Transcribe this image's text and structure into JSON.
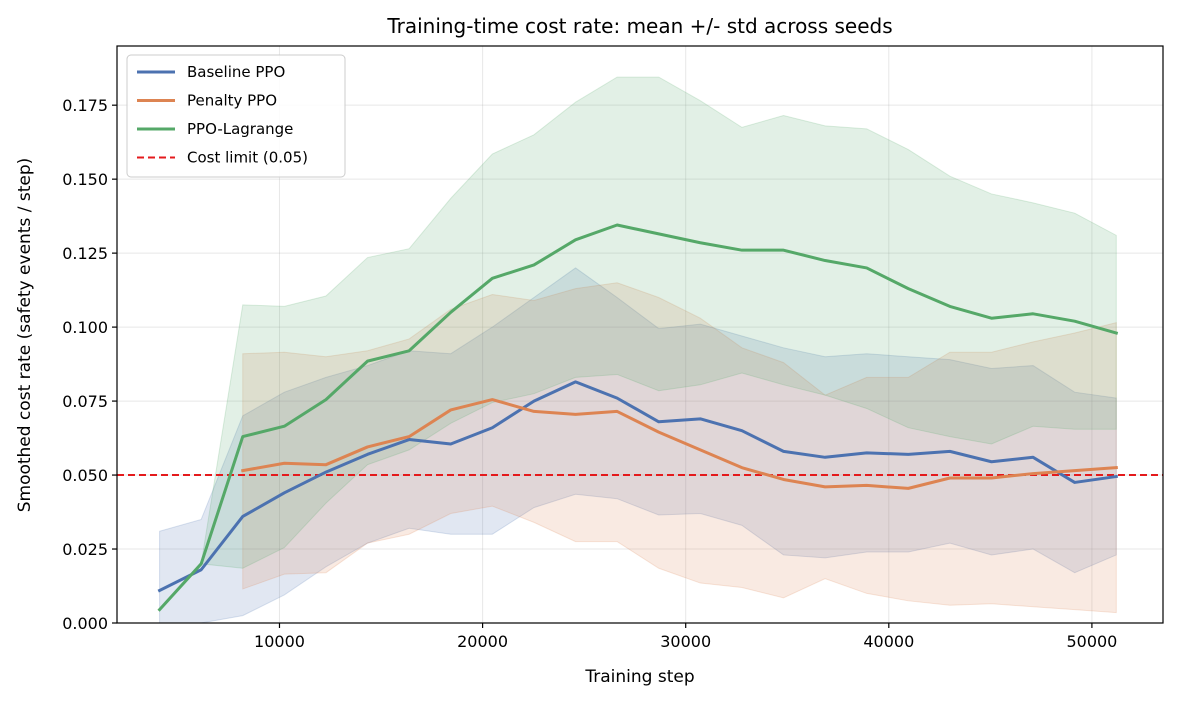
{
  "chart_data": {
    "type": "line",
    "title": "Training-time cost rate: mean +/- std across seeds",
    "xlabel": "Training step",
    "ylabel": "Smoothed cost rate (safety events / step)",
    "xlim": [
      2000,
      53500
    ],
    "ylim": [
      0.0,
      0.195
    ],
    "xticks": [
      10000,
      20000,
      30000,
      40000,
      50000
    ],
    "yticks": [
      0.0,
      0.025,
      0.05,
      0.075,
      0.1,
      0.125,
      0.15,
      0.175
    ],
    "xtick_labels": [
      "10000",
      "20000",
      "30000",
      "40000",
      "50000"
    ],
    "ytick_labels": [
      "0.000",
      "0.025",
      "0.050",
      "0.075",
      "0.100",
      "0.125",
      "0.150",
      "0.175"
    ],
    "grid": true,
    "legend_position": "top-left",
    "series": [
      {
        "name": "Baseline PPO",
        "color": "#4c72b0",
        "x": [
          4096,
          6144,
          8192,
          10240,
          12288,
          14336,
          16384,
          18432,
          20480,
          22528,
          24576,
          26624,
          28672,
          30720,
          32768,
          34816,
          36864,
          38912,
          40960,
          43008,
          45056,
          47104,
          49152,
          51200
        ],
        "mean": [
          0.011,
          0.018,
          0.036,
          0.044,
          0.051,
          0.057,
          0.062,
          0.0605,
          0.066,
          0.075,
          0.0815,
          0.076,
          0.068,
          0.069,
          0.065,
          0.058,
          0.056,
          0.0575,
          0.057,
          0.058,
          0.0545,
          0.056,
          0.0475,
          0.0495
        ],
        "upper": [
          0.031,
          0.035,
          0.07,
          0.078,
          0.083,
          0.087,
          0.092,
          0.091,
          0.1,
          0.11,
          0.12,
          0.11,
          0.0995,
          0.101,
          0.097,
          0.093,
          0.09,
          0.091,
          0.09,
          0.089,
          0.086,
          0.087,
          0.078,
          0.076
        ],
        "lower": [
          0.0,
          0.0,
          0.0025,
          0.0095,
          0.019,
          0.027,
          0.032,
          0.03,
          0.03,
          0.039,
          0.0435,
          0.042,
          0.0365,
          0.037,
          0.033,
          0.023,
          0.022,
          0.024,
          0.024,
          0.027,
          0.023,
          0.025,
          0.017,
          0.023
        ]
      },
      {
        "name": "Penalty PPO",
        "color": "#dd8452",
        "x": [
          8192,
          10240,
          12288,
          14336,
          16384,
          18432,
          20480,
          22528,
          24576,
          26624,
          28672,
          30720,
          32768,
          34816,
          36864,
          38912,
          40960,
          43008,
          45056,
          47104,
          49152,
          51200
        ],
        "mean": [
          0.0515,
          0.054,
          0.0535,
          0.0595,
          0.063,
          0.072,
          0.0755,
          0.0715,
          0.0705,
          0.0715,
          0.0645,
          0.0585,
          0.0525,
          0.0485,
          0.046,
          0.0465,
          0.0455,
          0.049,
          0.049,
          0.0505,
          0.0515,
          0.0525
        ],
        "upper": [
          0.091,
          0.0915,
          0.09,
          0.092,
          0.096,
          0.106,
          0.111,
          0.109,
          0.113,
          0.115,
          0.11,
          0.103,
          0.093,
          0.088,
          0.077,
          0.083,
          0.083,
          0.0915,
          0.0915,
          0.095,
          0.098,
          0.1015
        ],
        "lower": [
          0.0115,
          0.0165,
          0.017,
          0.027,
          0.03,
          0.037,
          0.0395,
          0.034,
          0.0275,
          0.0275,
          0.0185,
          0.0135,
          0.012,
          0.0085,
          0.015,
          0.01,
          0.0075,
          0.006,
          0.0065,
          0.0055,
          0.0045,
          0.0035
        ]
      },
      {
        "name": "PPO-Lagrange",
        "color": "#55a868",
        "x": [
          4096,
          6144,
          8192,
          10240,
          12288,
          14336,
          16384,
          18432,
          20480,
          22528,
          24576,
          26624,
          28672,
          30720,
          32768,
          34816,
          36864,
          38912,
          40960,
          43008,
          45056,
          47104,
          49152,
          51200
        ],
        "mean": [
          0.0045,
          0.02,
          0.063,
          0.0665,
          0.0755,
          0.0885,
          0.092,
          0.105,
          0.1165,
          0.121,
          0.1295,
          0.1345,
          0.1315,
          0.1285,
          0.126,
          0.126,
          0.1225,
          0.12,
          0.113,
          0.107,
          0.103,
          0.1045,
          0.102,
          0.098
        ],
        "upper": [
          0.0045,
          0.02,
          0.1075,
          0.107,
          0.1105,
          0.1235,
          0.1265,
          0.1435,
          0.1585,
          0.165,
          0.176,
          0.1845,
          0.1845,
          0.1765,
          0.1675,
          0.1715,
          0.168,
          0.167,
          0.16,
          0.151,
          0.145,
          0.142,
          0.1385,
          0.131
        ],
        "lower": [
          0.0045,
          0.02,
          0.0185,
          0.0255,
          0.0405,
          0.0535,
          0.0585,
          0.0675,
          0.0745,
          0.0775,
          0.083,
          0.084,
          0.0785,
          0.0805,
          0.0845,
          0.0805,
          0.077,
          0.0725,
          0.066,
          0.063,
          0.0605,
          0.0665,
          0.0655,
          0.0655
        ]
      }
    ],
    "reference_lines": [
      {
        "name": "Cost limit (0.05)",
        "y": 0.05,
        "color": "#e41a1c",
        "style": "dashed"
      }
    ]
  }
}
